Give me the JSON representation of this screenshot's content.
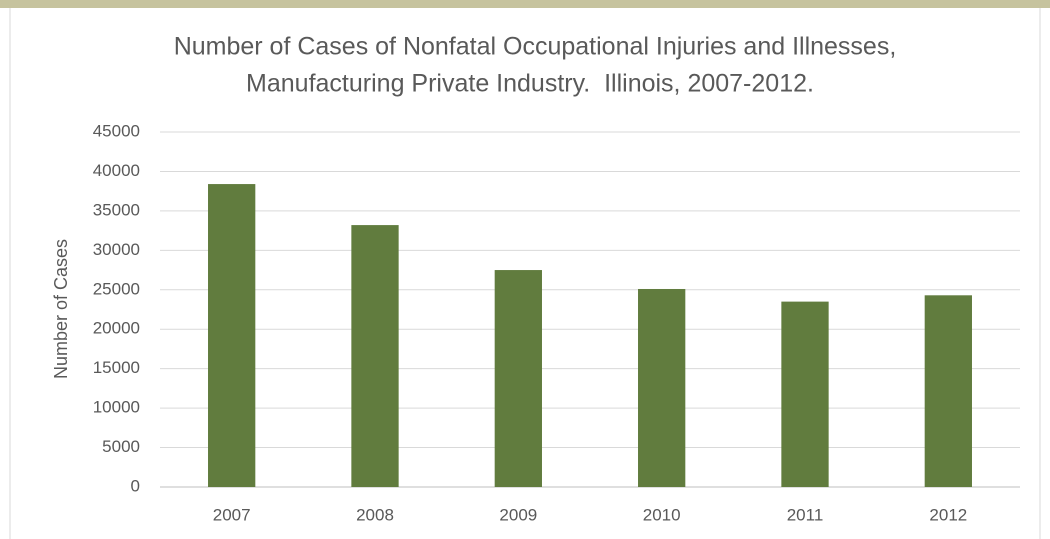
{
  "chart_data": {
    "type": "bar",
    "title": [
      "Number of Cases of Nonfatal Occupational Injuries and Illnesses,",
      "Manufacturing Private Industry.  Illinois, 2007-2012."
    ],
    "y_label": "Number of Cases",
    "categories": [
      "2007",
      "2008",
      "2009",
      "2010",
      "2011",
      "2012"
    ],
    "values": [
      38400,
      33200,
      27500,
      25100,
      23500,
      24300
    ],
    "color": "#617c3e",
    "ylim": [
      0,
      45000
    ],
    "yticks": [
      0,
      5000,
      10000,
      15000,
      20000,
      25000,
      30000,
      35000,
      40000,
      45000
    ],
    "grid": true
  }
}
